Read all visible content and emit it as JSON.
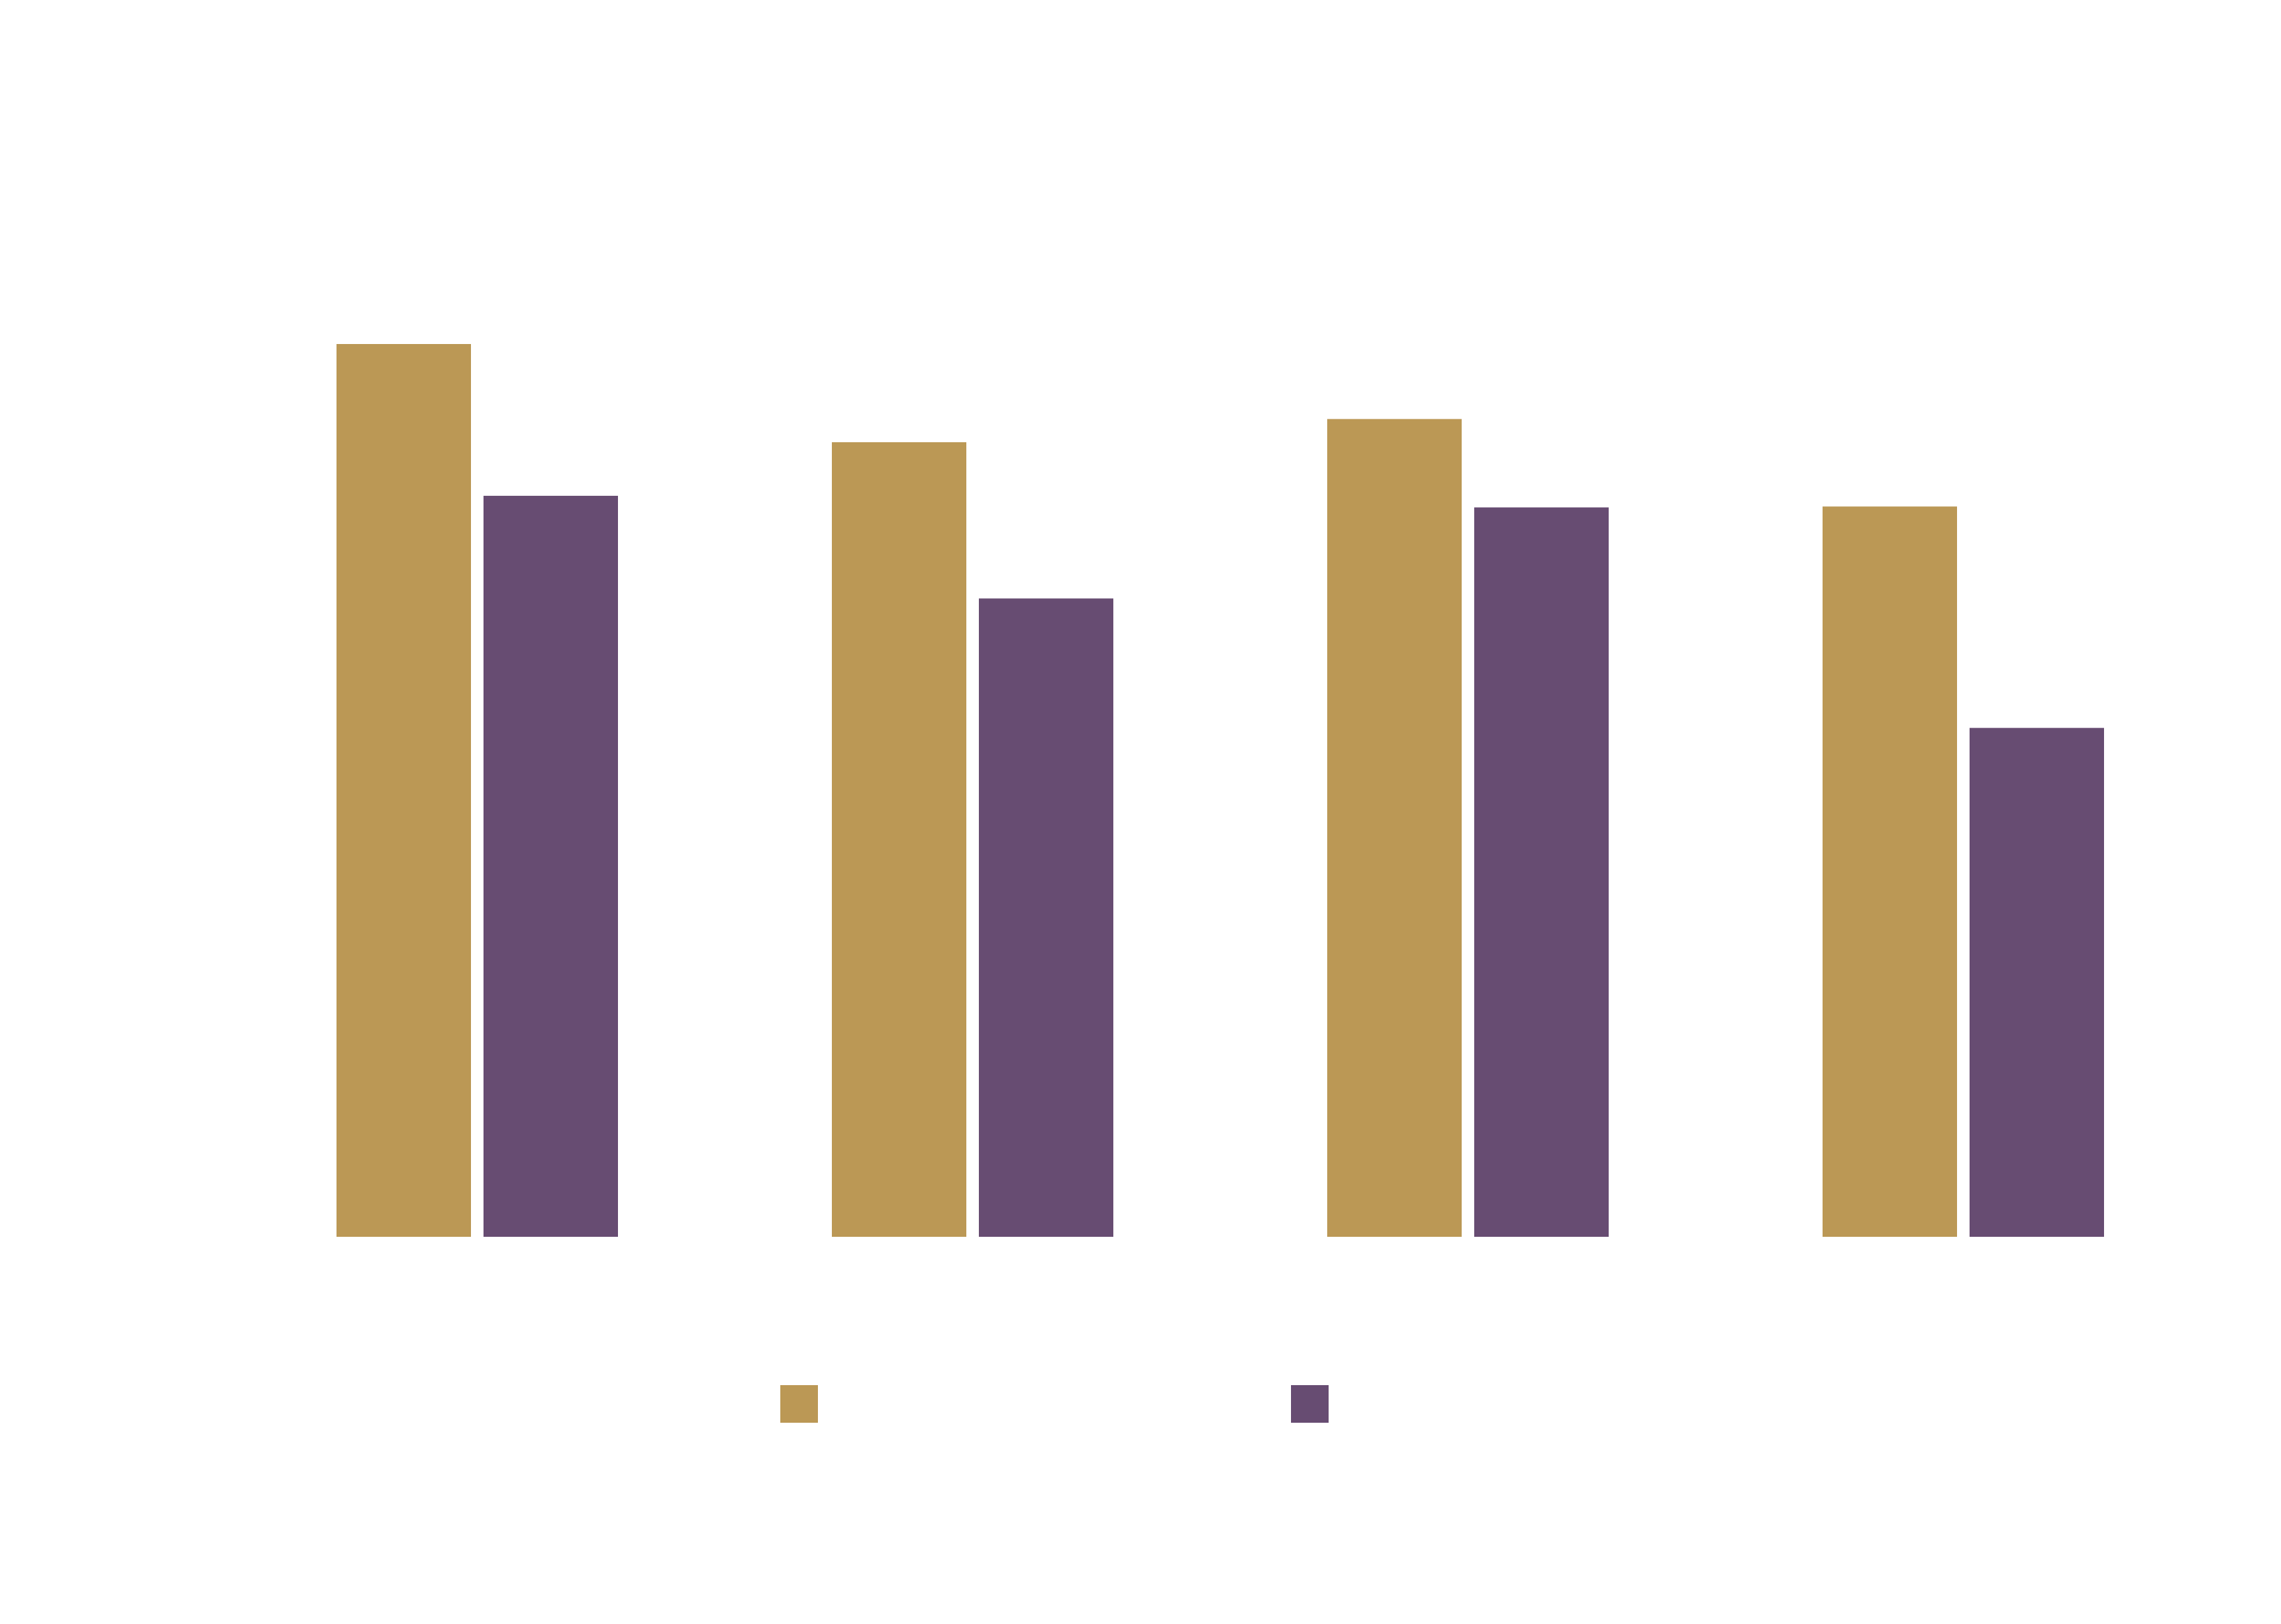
{
  "chart_data": {
    "type": "bar",
    "categories": [
      "",
      "",
      "",
      ""
    ],
    "series": [
      {
        "color": "#BB9855",
        "values": [
          100,
          89,
          91.6,
          81.8
        ]
      },
      {
        "color": "#674C72",
        "values": [
          83,
          71.5,
          81.7,
          57
        ]
      }
    ],
    "ylim": [
      0,
      100
    ],
    "grid": false,
    "legend": {
      "position": "bottom"
    }
  }
}
